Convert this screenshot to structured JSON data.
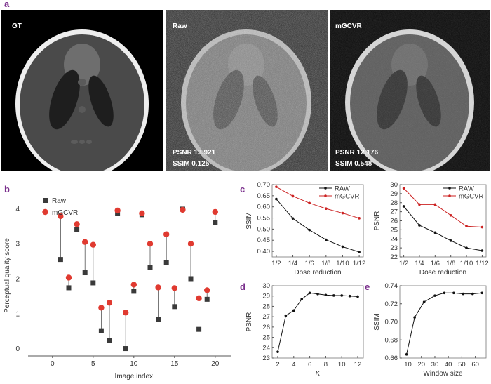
{
  "panel_letters": {
    "a": "a",
    "b": "b",
    "c": "c",
    "d": "d",
    "e": "e"
  },
  "images": [
    {
      "label": "GT",
      "psnr_text": "",
      "ssim_text": ""
    },
    {
      "label": "Raw",
      "psnr_text": "PSNR 13.921",
      "ssim_text": "SSIM 0.125"
    },
    {
      "label": "mGCVR",
      "psnr_text": "PSNR 12.176",
      "ssim_text": "SSIM 0.548"
    }
  ],
  "colors": {
    "raw": "#3a3a3a",
    "mgcvr": "#e03a30",
    "line_black": "#111111",
    "line_red": "#cc2222",
    "label": "#7a2f8c"
  },
  "chart_data": [
    {
      "id": "b",
      "type": "scatter",
      "xlabel": "Image index",
      "ylabel": "Perceptual quality score",
      "xlim": [
        -3,
        22
      ],
      "ylim": [
        -0.2,
        4.4
      ],
      "xticks": [
        0,
        5,
        10,
        15,
        20
      ],
      "yticks": [
        0,
        1,
        2,
        3,
        4
      ],
      "legend_position": "top-left",
      "series": [
        {
          "name": "Raw",
          "marker": "square",
          "x": [
            1,
            2,
            3,
            4,
            5,
            6,
            7,
            8,
            9,
            10,
            11,
            12,
            13,
            14,
            15,
            16,
            17,
            18,
            19,
            20
          ],
          "values": [
            2.56,
            1.75,
            3.42,
            2.18,
            1.89,
            0.52,
            0.24,
            3.88,
            0.01,
            1.65,
            3.84,
            2.33,
            0.84,
            2.48,
            1.21,
            4.0,
            2.01,
            0.56,
            1.42,
            3.62
          ]
        },
        {
          "name": "mGCVR",
          "marker": "circle",
          "x": [
            1,
            2,
            3,
            4,
            5,
            6,
            7,
            8,
            9,
            10,
            11,
            12,
            13,
            14,
            15,
            16,
            17,
            18,
            19,
            20
          ],
          "values": [
            3.8,
            2.04,
            3.57,
            3.06,
            2.98,
            1.18,
            1.32,
            3.96,
            1.04,
            1.84,
            3.88,
            3.01,
            1.76,
            3.28,
            1.74,
            3.98,
            3.01,
            1.45,
            1.68,
            3.92
          ]
        }
      ]
    },
    {
      "id": "c_ssim",
      "type": "line",
      "xlabel": "Dose reduction",
      "ylabel": "SSIM",
      "categories": [
        "1/2",
        "1/4",
        "1/6",
        "1/8",
        "1/10",
        "1/12"
      ],
      "ylim": [
        0.375,
        0.7
      ],
      "yticks": [
        0.4,
        0.45,
        0.5,
        0.55,
        0.6,
        0.65,
        0.7
      ],
      "ytick_labels": [
        "0.40",
        "0.45",
        "0.50",
        "0.55",
        "0.60",
        "0.65",
        "0.70"
      ],
      "legend_position": "top-right",
      "series": [
        {
          "name": "RAW",
          "values": [
            0.635,
            0.548,
            0.496,
            0.452,
            0.421,
            0.397
          ]
        },
        {
          "name": "mGCVR",
          "values": [
            0.69,
            0.648,
            0.617,
            0.592,
            0.572,
            0.549
          ]
        }
      ]
    },
    {
      "id": "c_psnr",
      "type": "line",
      "xlabel": "Dose reduction",
      "ylabel": "PSNR",
      "categories": [
        "1/2",
        "1/4",
        "1/6",
        "1/8",
        "1/10",
        "1/12"
      ],
      "ylim": [
        22,
        30
      ],
      "yticks": [
        22,
        23,
        24,
        25,
        26,
        27,
        28,
        29,
        30
      ],
      "ytick_labels": [
        "22",
        "23",
        "24",
        "25",
        "26",
        "27",
        "28",
        "29",
        "30"
      ],
      "legend_position": "top-right",
      "series": [
        {
          "name": "RAW",
          "values": [
            27.6,
            25.5,
            24.7,
            23.8,
            23.0,
            22.7
          ]
        },
        {
          "name": "mGCVR",
          "values": [
            29.6,
            27.8,
            27.8,
            26.6,
            25.4,
            25.3
          ]
        }
      ]
    },
    {
      "id": "d",
      "type": "line",
      "xlabel": "K",
      "ylabel": "PSNR",
      "xlim": [
        1.3,
        12.7
      ],
      "ylim": [
        23,
        30
      ],
      "xticks": [
        2,
        4,
        6,
        8,
        10,
        12
      ],
      "yticks": [
        23,
        24,
        25,
        26,
        27,
        28,
        29,
        30
      ],
      "ytick_labels": [
        "23",
        "24",
        "25",
        "26",
        "27",
        "28",
        "29",
        "30"
      ],
      "series": [
        {
          "x": [
            2,
            3,
            4,
            5,
            6,
            7,
            8,
            9,
            10,
            11,
            12
          ],
          "values": [
            23.6,
            27.1,
            27.6,
            28.7,
            29.3,
            29.2,
            29.1,
            29.05,
            29.05,
            29.0,
            28.95
          ]
        }
      ]
    },
    {
      "id": "e",
      "type": "line",
      "xlabel": "Window size",
      "ylabel": "SSIM",
      "xlim": [
        4,
        68
      ],
      "ylim": [
        0.66,
        0.74
      ],
      "xticks": [
        10,
        20,
        30,
        40,
        50,
        60
      ],
      "yticks": [
        0.66,
        0.68,
        0.7,
        0.72,
        0.74
      ],
      "ytick_labels": [
        "0.66",
        "0.68",
        "0.70",
        "0.72",
        "0.74"
      ],
      "series": [
        {
          "x": [
            9,
            15,
            22,
            30,
            37,
            44,
            51,
            58,
            65
          ],
          "values": [
            0.664,
            0.705,
            0.722,
            0.729,
            0.732,
            0.732,
            0.731,
            0.731,
            0.732
          ]
        }
      ]
    }
  ]
}
